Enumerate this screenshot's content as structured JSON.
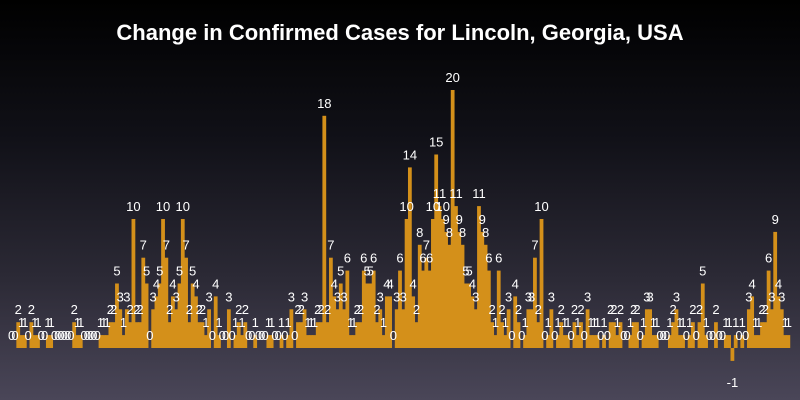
{
  "chart_data": {
    "type": "bar",
    "title": "Change in Confirmed Cases for Lincoln, Georgia, USA",
    "xlabel": "",
    "ylabel": "",
    "ylim": [
      -1,
      20
    ],
    "grid": false,
    "legend": "none",
    "colors": {
      "bar": "#d4901a",
      "label": "#ffffff",
      "title": "#ffffff"
    },
    "values": [
      0,
      0,
      2,
      1,
      1,
      0,
      2,
      1,
      1,
      0,
      0,
      1,
      1,
      0,
      0,
      0,
      0,
      0,
      0,
      2,
      1,
      1,
      0,
      0,
      0,
      0,
      0,
      1,
      1,
      1,
      2,
      2,
      5,
      3,
      1,
      3,
      2,
      10,
      2,
      2,
      7,
      5,
      0,
      3,
      4,
      5,
      10,
      7,
      2,
      4,
      3,
      5,
      10,
      7,
      2,
      5,
      4,
      2,
      2,
      1,
      3,
      0,
      4,
      1,
      0,
      0,
      3,
      0,
      1,
      2,
      1,
      2,
      0,
      0,
      1,
      0,
      0,
      0,
      1,
      1,
      0,
      0,
      1,
      0,
      1,
      3,
      0,
      2,
      2,
      3,
      1,
      1,
      1,
      2,
      2,
      18,
      2,
      7,
      4,
      3,
      5,
      3,
      6,
      1,
      1,
      2,
      2,
      6,
      5,
      5,
      6,
      2,
      3,
      1,
      4,
      4,
      0,
      3,
      6,
      3,
      10,
      14,
      4,
      2,
      8,
      6,
      7,
      6,
      10,
      15,
      11,
      10,
      9,
      8,
      20,
      11,
      9,
      8,
      5,
      5,
      4,
      3,
      11,
      9,
      8,
      6,
      2,
      1,
      6,
      2,
      1,
      3,
      0,
      4,
      2,
      0,
      1,
      3,
      3,
      7,
      2,
      10,
      0,
      1,
      3,
      0,
      1,
      2,
      1,
      1,
      0,
      2,
      1,
      2,
      0,
      3,
      1,
      1,
      1,
      0,
      1,
      0,
      2,
      2,
      1,
      2,
      0,
      0,
      1,
      2,
      2,
      0,
      1,
      3,
      3,
      1,
      1,
      0,
      0,
      0,
      1,
      2,
      3,
      1,
      1,
      0,
      1,
      2,
      0,
      2,
      5,
      1,
      0,
      0,
      2,
      0,
      0,
      1,
      1,
      -1,
      1,
      0,
      1,
      0,
      3,
      4,
      1,
      1,
      2,
      2,
      6,
      3,
      9,
      4,
      3,
      1,
      1
    ],
    "annotations": [
      "-1",
      "-1"
    ]
  }
}
